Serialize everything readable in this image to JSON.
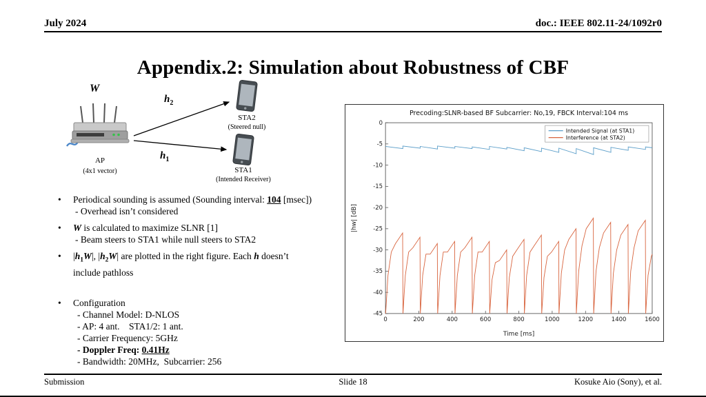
{
  "header": {
    "date": "July 2024",
    "doc": "doc.: IEEE 802.11-24/1092r0"
  },
  "title": "Appendix.2: Simulation about Robustness of CBF",
  "diagram": {
    "w": "W",
    "ap": "AP",
    "ap_sub": "(4x1 vector)",
    "h": "h",
    "h2_sub": "2",
    "h1_sub": "1",
    "sta2": "STA2",
    "sta2_sub": "(Steered null)",
    "sta1": "STA1",
    "sta1_sub": "(Intended Receiver)"
  },
  "bullets": {
    "b1": {
      "pre": "Periodical sounding is assumed (Sounding interval: ",
      "strong": "104",
      "post": " [msec])",
      "line2": "- Overhead isn’t considered"
    },
    "b2": {
      "strong": "W",
      "post": " is calculated to maximize SLNR [1]",
      "line2": "- Beam steers to STA1 while null steers to STA2"
    },
    "b3": {
      "bar": "|",
      "h": "h",
      "sub1": "1",
      "w": "W",
      "mid": "|, |",
      "sub2": "2",
      "tail1": "| are plotted in the right figure. Each ",
      "tail2": " doesn’t",
      "line2": "include pathloss"
    },
    "b4": {
      "head": "Configuration",
      "l1": "- Channel Model: D-NLOS",
      "l2": "- AP: 4 ant.    STA1/2: 1 ant.",
      "l3": "- Carrier Frequency: 5GHz",
      "l4_pre": "- Doppler Freq: ",
      "l4_strong": "0.41Hz",
      "l5": "- Bandwidth: 20MHz,  Subcarrier: 256"
    }
  },
  "footer": {
    "left": "Submission",
    "center": "Slide 18",
    "right": "Kosuke Aio (Sony), et al."
  },
  "chart_data": {
    "type": "line",
    "title": "Precoding:SLNR-based BF Subcarrier: No,19,  FBCK Interval:104 ms",
    "xlabel": "Time [ms]",
    "ylabel": "|hw| [dB]",
    "xlim": [
      0,
      1600
    ],
    "ylim": [
      -45,
      0
    ],
    "xticks": [
      0,
      200,
      400,
      600,
      800,
      1000,
      1200,
      1400,
      1600
    ],
    "yticks": [
      0,
      -5,
      -10,
      -15,
      -20,
      -25,
      -30,
      -35,
      -40,
      -45
    ],
    "grid": false,
    "legend_position": "top-right",
    "sounding_interval_ms": 104,
    "series": [
      {
        "name": "Intended Signal (at STA1)",
        "color": "#5b9ec9",
        "points": [
          [
            0,
            -5.6
          ],
          [
            104,
            -6.1
          ],
          [
            104,
            -5.5
          ],
          [
            208,
            -6.0
          ],
          [
            208,
            -5.6
          ],
          [
            312,
            -6.2
          ],
          [
            312,
            -5.5
          ],
          [
            416,
            -6.0
          ],
          [
            416,
            -5.6
          ],
          [
            520,
            -6.1
          ],
          [
            520,
            -5.7
          ],
          [
            624,
            -6.3
          ],
          [
            624,
            -5.6
          ],
          [
            728,
            -6.2
          ],
          [
            728,
            -5.8
          ],
          [
            832,
            -6.6
          ],
          [
            832,
            -5.9
          ],
          [
            936,
            -6.8
          ],
          [
            936,
            -6.0
          ],
          [
            1040,
            -7.0
          ],
          [
            1040,
            -6.0
          ],
          [
            1144,
            -7.3
          ],
          [
            1144,
            -6.1
          ],
          [
            1248,
            -7.5
          ],
          [
            1248,
            -5.9
          ],
          [
            1352,
            -7.0
          ],
          [
            1352,
            -5.8
          ],
          [
            1456,
            -6.5
          ],
          [
            1456,
            -5.7
          ],
          [
            1560,
            -6.3
          ],
          [
            1560,
            -5.7
          ],
          [
            1600,
            -5.9
          ]
        ]
      },
      {
        "name": "Interference (at STA2)",
        "color": "#d8643e",
        "points": [
          [
            1,
            -45
          ],
          [
            15,
            -36
          ],
          [
            35,
            -30.5
          ],
          [
            60,
            -28.5
          ],
          [
            103,
            -26
          ],
          [
            105,
            -45
          ],
          [
            119,
            -36
          ],
          [
            139,
            -30.5
          ],
          [
            164,
            -29.5
          ],
          [
            207,
            -27
          ],
          [
            209,
            -45
          ],
          [
            223,
            -36
          ],
          [
            243,
            -31
          ],
          [
            268,
            -31
          ],
          [
            311,
            -28.5
          ],
          [
            313,
            -45
          ],
          [
            327,
            -36
          ],
          [
            347,
            -30.5
          ],
          [
            372,
            -30.5
          ],
          [
            415,
            -28
          ],
          [
            417,
            -45
          ],
          [
            431,
            -36
          ],
          [
            451,
            -30.5
          ],
          [
            476,
            -29.5
          ],
          [
            519,
            -27
          ],
          [
            521,
            -45
          ],
          [
            535,
            -36
          ],
          [
            555,
            -30.5
          ],
          [
            580,
            -30.5
          ],
          [
            623,
            -28
          ],
          [
            625,
            -45
          ],
          [
            639,
            -37
          ],
          [
            659,
            -33
          ],
          [
            684,
            -32.5
          ],
          [
            727,
            -30
          ],
          [
            729,
            -45
          ],
          [
            743,
            -36.5
          ],
          [
            763,
            -31.5
          ],
          [
            788,
            -30
          ],
          [
            831,
            -27.5
          ],
          [
            833,
            -45
          ],
          [
            847,
            -36
          ],
          [
            867,
            -30.5
          ],
          [
            892,
            -29
          ],
          [
            935,
            -26.5
          ],
          [
            937,
            -45
          ],
          [
            951,
            -36.5
          ],
          [
            971,
            -31.5
          ],
          [
            996,
            -30.5
          ],
          [
            1039,
            -28
          ],
          [
            1041,
            -45
          ],
          [
            1055,
            -35.5
          ],
          [
            1075,
            -30
          ],
          [
            1100,
            -27.5
          ],
          [
            1143,
            -25
          ],
          [
            1145,
            -45
          ],
          [
            1159,
            -35
          ],
          [
            1179,
            -29
          ],
          [
            1204,
            -25
          ],
          [
            1247,
            -22.5
          ],
          [
            1249,
            -45
          ],
          [
            1263,
            -35
          ],
          [
            1283,
            -29.5
          ],
          [
            1308,
            -26
          ],
          [
            1351,
            -23.5
          ],
          [
            1353,
            -45
          ],
          [
            1367,
            -35.5
          ],
          [
            1387,
            -30
          ],
          [
            1412,
            -26.5
          ],
          [
            1455,
            -24
          ],
          [
            1457,
            -45
          ],
          [
            1471,
            -35
          ],
          [
            1491,
            -29.5
          ],
          [
            1516,
            -25.5
          ],
          [
            1559,
            -23
          ],
          [
            1561,
            -45
          ],
          [
            1575,
            -36
          ],
          [
            1595,
            -31.5
          ],
          [
            1600,
            -31
          ]
        ]
      }
    ]
  }
}
